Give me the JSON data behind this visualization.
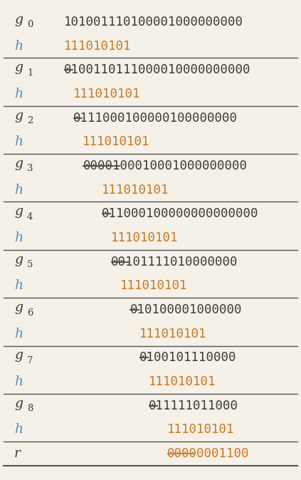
{
  "rows": [
    {
      "label": "g",
      "sub": "0",
      "value": "101001110100001000000000",
      "strike_count": 0,
      "indent": 0,
      "color": "dark"
    },
    {
      "label": "h",
      "sub": "",
      "value": "111010101",
      "strike_count": 0,
      "indent": 0,
      "color": "orange"
    },
    {
      "label": "g",
      "sub": "1",
      "value": "0100110111000010000000000",
      "strike_count": 1,
      "indent": 0,
      "color": "dark"
    },
    {
      "label": "h",
      "sub": "",
      "value": "111010101",
      "strike_count": 0,
      "indent": 1,
      "color": "orange"
    },
    {
      "label": "g",
      "sub": "2",
      "value": "0111000100000100000000",
      "strike_count": 1,
      "indent": 1,
      "color": "dark"
    },
    {
      "label": "h",
      "sub": "",
      "value": "111010101",
      "strike_count": 0,
      "indent": 2,
      "color": "orange"
    },
    {
      "label": "g",
      "sub": "3",
      "value": "0000100010001000000000",
      "strike_count": 4,
      "indent": 2,
      "color": "dark"
    },
    {
      "label": "h",
      "sub": "",
      "value": "111010101",
      "strike_count": 0,
      "indent": 4,
      "color": "orange"
    },
    {
      "label": "g",
      "sub": "4",
      "value": "011000100000000000000",
      "strike_count": 1,
      "indent": 4,
      "color": "dark"
    },
    {
      "label": "h",
      "sub": "",
      "value": "111010101",
      "strike_count": 0,
      "indent": 5,
      "color": "orange"
    },
    {
      "label": "g",
      "sub": "5",
      "value": "00101111010000000",
      "strike_count": 2,
      "indent": 5,
      "color": "dark"
    },
    {
      "label": "h",
      "sub": "",
      "value": "111010101",
      "strike_count": 0,
      "indent": 6,
      "color": "orange"
    },
    {
      "label": "g",
      "sub": "6",
      "value": "010100001000000",
      "strike_count": 1,
      "indent": 7,
      "color": "dark"
    },
    {
      "label": "h",
      "sub": "",
      "value": "111010101",
      "strike_count": 0,
      "indent": 8,
      "color": "orange"
    },
    {
      "label": "g",
      "sub": "7",
      "value": "0100101110000",
      "strike_count": 1,
      "indent": 8,
      "color": "dark"
    },
    {
      "label": "h",
      "sub": "",
      "value": "111010101",
      "strike_count": 0,
      "indent": 9,
      "color": "orange"
    },
    {
      "label": "g",
      "sub": "8",
      "value": "011111011000",
      "strike_count": 1,
      "indent": 9,
      "color": "dark"
    },
    {
      "label": "h",
      "sub": "",
      "value": "111010101",
      "strike_count": 0,
      "indent": 11,
      "color": "orange"
    },
    {
      "label": "r",
      "sub": "",
      "value": "00000001100",
      "strike_count": 3,
      "indent": 11,
      "color": "orange"
    }
  ],
  "color_dark": "#3a3a3a",
  "color_orange": "#c87820",
  "color_label_g": "#3a3a3a",
  "color_label_h": "#5b8db8",
  "color_label_r": "#3a3a3a",
  "bg_color": "#f5f0e8",
  "sep_line_color": "#555555",
  "font_size": 12.5,
  "label_font_size": 13.5
}
